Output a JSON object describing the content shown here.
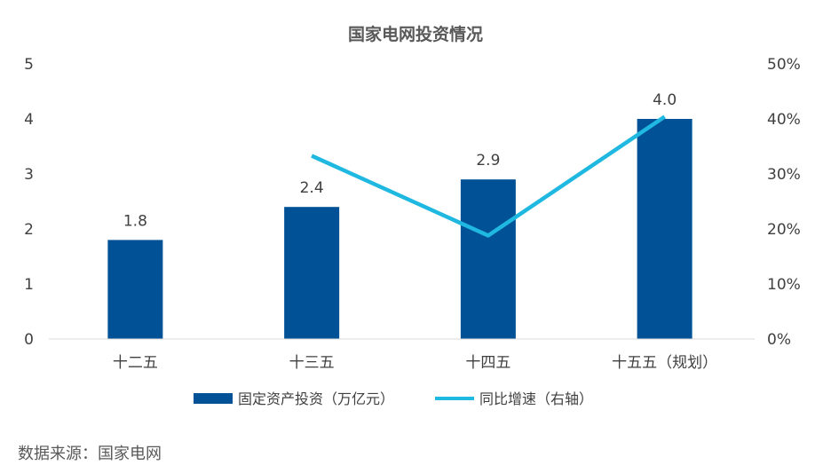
{
  "chart_data": {
    "type": "bar",
    "title": "国家电网投资情况",
    "categories": [
      "十二五",
      "十三五",
      "十四五",
      "十五五（规划）"
    ],
    "series": [
      {
        "name": "固定资产投资（万亿元）",
        "type": "bar",
        "axis": "left",
        "values": [
          1.8,
          2.4,
          2.9,
          4.0
        ],
        "color": "#005196"
      },
      {
        "name": "同比增速（右轴）",
        "type": "line",
        "axis": "right",
        "values": [
          null,
          33.3,
          18.8,
          40.4
        ],
        "color": "#1fb8e0"
      }
    ],
    "data_labels": [
      "1.8",
      "2.4",
      "2.9",
      "4.0"
    ],
    "ylim": [
      0,
      5
    ],
    "yticks": [
      "0",
      "1",
      "2",
      "3",
      "4",
      "5"
    ],
    "y2lim": [
      0,
      50
    ],
    "y2ticks": [
      "0%",
      "10%",
      "20%",
      "30%",
      "40%",
      "50%"
    ],
    "legend_position": "bottom",
    "grid": false
  },
  "source": "数据来源：国家电网"
}
